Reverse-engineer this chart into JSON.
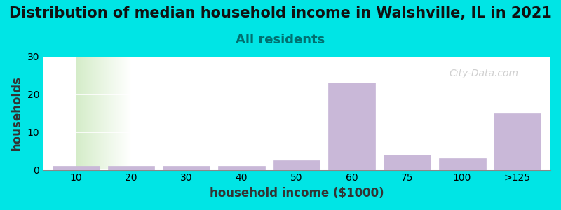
{
  "title": "Distribution of median household income in Walshville, IL in 2021",
  "subtitle": "All residents",
  "xlabel": "household income ($1000)",
  "ylabel": "households",
  "categories": [
    "10",
    "20",
    "30",
    "40",
    "50",
    "60",
    "75",
    "100",
    ">125"
  ],
  "values": [
    1,
    1,
    1,
    1,
    2.5,
    23,
    4,
    3,
    15
  ],
  "bar_color": "#c9b8d8",
  "bar_edge_color": "#c9b8d8",
  "ylim": [
    0,
    30
  ],
  "yticks": [
    0,
    10,
    20,
    30
  ],
  "bg_color": "#00e5e5",
  "plot_bg_left": "#d4ecc8",
  "plot_bg_right": "#ffffff",
  "title_fontsize": 15,
  "subtitle_fontsize": 13,
  "subtitle_color": "#007070",
  "axis_label_fontsize": 12,
  "watermark": "City-Data.com",
  "watermark_color": "#b0b0b0"
}
